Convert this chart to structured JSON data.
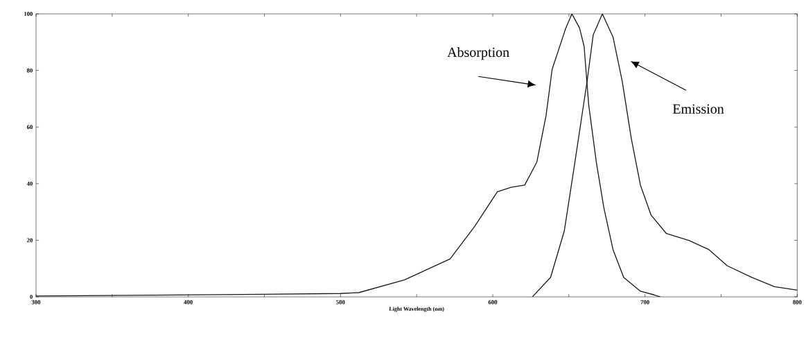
{
  "chart_data": {
    "type": "line",
    "xlabel": "Light Wavelength (nm)",
    "xlim": [
      300,
      800
    ],
    "ylim": [
      0,
      100
    ],
    "xticks": [
      300,
      {
        "value": 350,
        "label": null
      },
      400,
      {
        "value": 450,
        "label": null
      },
      500,
      {
        "value": 550,
        "label": null
      },
      600,
      {
        "value": 650,
        "label": null
      },
      700,
      {
        "value": 750,
        "label": null
      },
      800
    ],
    "yticks": [
      0,
      20,
      40,
      60,
      80,
      100
    ],
    "grid": false,
    "marker": "none",
    "line_style": "solid",
    "series": [
      {
        "color": "#1a1a1a",
        "x": [
          300,
          350,
          400,
          450,
          500,
          512,
          542,
          572,
          588,
          603,
          612,
          621,
          629,
          635,
          639,
          648,
          652,
          657,
          660,
          663,
          668,
          673,
          679,
          686,
          697,
          706,
          710
        ],
        "values": [
          0.3,
          0.5,
          0.7,
          0.9,
          1.2,
          1.5,
          6,
          13.4,
          24.8,
          37.1,
          38.7,
          39.5,
          47.7,
          64,
          80.4,
          95,
          100,
          95,
          88.6,
          68,
          47.7,
          31.4,
          16.7,
          6.9,
          2,
          0.7,
          0
        ]
      },
      {
        "color": "#1a1a1a",
        "x": [
          626,
          638,
          647,
          654,
          662,
          666,
          672,
          679,
          685,
          691,
          697,
          704,
          714,
          729,
          742,
          754,
          770,
          785,
          800
        ],
        "values": [
          0,
          6.9,
          23.3,
          47.7,
          76.3,
          92.6,
          100,
          91.8,
          76.3,
          56,
          39.5,
          28.9,
          22.4,
          19.9,
          16.7,
          11,
          6.9,
          3.6,
          2.4
        ]
      }
    ],
    "annotations": [
      "Absorption",
      "Emission"
    ]
  }
}
